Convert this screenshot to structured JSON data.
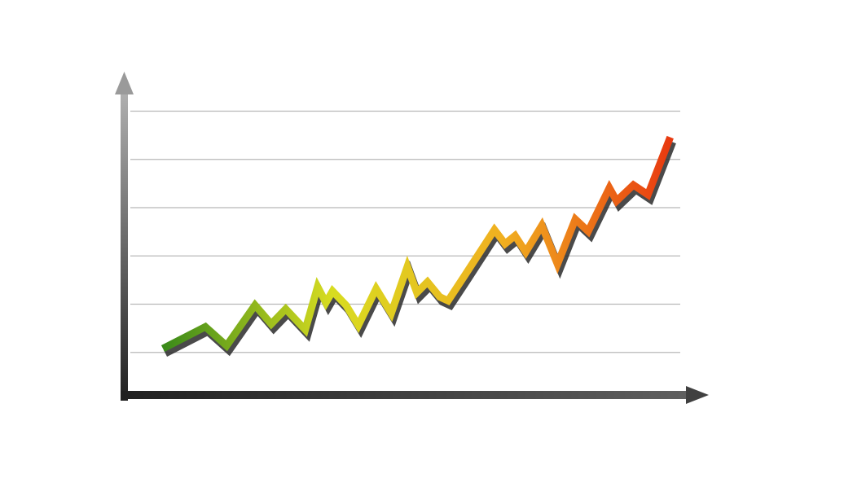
{
  "chart_data": {
    "type": "line",
    "x": [
      7.3,
      14.9,
      18.7,
      23.8,
      26.7,
      29.3,
      32.8,
      35.0,
      36.5,
      37.7,
      40.1,
      42.3,
      45.5,
      48.2,
      51.1,
      52.8,
      54.7,
      56.9,
      58.4,
      61.3,
      66.7,
      68.6,
      70.4,
      72.3,
      75.2,
      78.0,
      81.2,
      83.5,
      87.3,
      88.6,
      91.6,
      94.2,
      98.2
    ],
    "series": [
      {
        "color_stops": [
          "#3a8a1a",
          "#d8dc20",
          "#f0b020",
          "#e83a10"
        ],
        "values": [
          1.08,
          1.53,
          1.14,
          1.98,
          1.59,
          1.9,
          1.47,
          2.36,
          2.03,
          2.27,
          1.98,
          1.56,
          2.32,
          1.81,
          2.78,
          2.24,
          2.46,
          2.15,
          2.07,
          2.58,
          3.54,
          3.25,
          3.42,
          3.08,
          3.63,
          2.83,
          3.76,
          3.51,
          4.41,
          4.14,
          4.47,
          4.27,
          5.46
        ]
      }
    ],
    "xlim": [
      0,
      100
    ],
    "ylim": [
      0,
      6.7
    ],
    "yticks": [
      1,
      2,
      3,
      4,
      5,
      6
    ],
    "grid": true
  }
}
